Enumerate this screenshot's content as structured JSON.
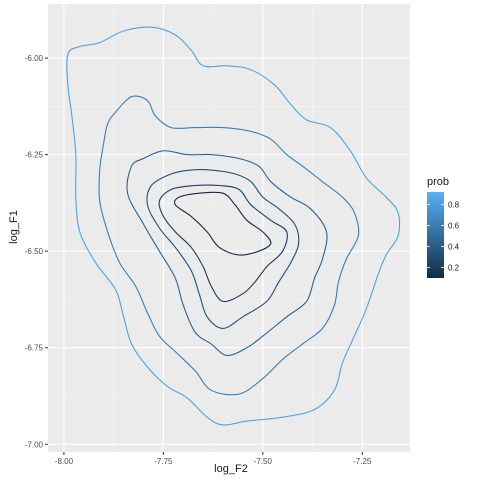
{
  "chart_data": {
    "type": "contour",
    "xlabel": "log_F2",
    "ylabel": "log_F1",
    "xlim": [
      -8.04,
      -7.13
    ],
    "ylim": [
      -7.02,
      -5.86
    ],
    "x_ticks": [
      -8.0,
      -7.75,
      -7.5,
      -7.25
    ],
    "x_tick_labels": [
      "-8.00",
      "-7.75",
      "-7.50",
      "-7.25"
    ],
    "y_ticks": [
      -6.0,
      -6.25,
      -6.5,
      -6.75,
      -7.0
    ],
    "y_tick_labels": [
      "-6.00",
      "-6.25",
      "-6.50",
      "-6.75",
      "-7.00"
    ],
    "grid": true,
    "legend": {
      "title": "prob",
      "placement": "right",
      "type": "colorbar",
      "breaks": [
        0.2,
        0.4,
        0.6,
        0.8
      ],
      "break_labels": [
        "0.2",
        "0.4",
        "0.6",
        "0.8"
      ],
      "range": [
        0.1,
        0.92
      ],
      "color_low": "#132B43",
      "color_high": "#56B1F7"
    },
    "series": [
      {
        "level": 0.9,
        "color": "#4EA3E4",
        "points": [
          [
            -7.91,
            -5.96
          ],
          [
            -7.85,
            -5.93
          ],
          [
            -7.78,
            -5.92
          ],
          [
            -7.72,
            -5.94
          ],
          [
            -7.68,
            -5.98
          ],
          [
            -7.65,
            -6.02
          ],
          [
            -7.59,
            -6.02
          ],
          [
            -7.53,
            -6.03
          ],
          [
            -7.47,
            -6.07
          ],
          [
            -7.43,
            -6.12
          ],
          [
            -7.39,
            -6.16
          ],
          [
            -7.33,
            -6.18
          ],
          [
            -7.28,
            -6.24
          ],
          [
            -7.24,
            -6.31
          ],
          [
            -7.19,
            -6.36
          ],
          [
            -7.16,
            -6.4
          ],
          [
            -7.16,
            -6.46
          ],
          [
            -7.19,
            -6.51
          ],
          [
            -7.21,
            -6.56
          ],
          [
            -7.24,
            -6.65
          ],
          [
            -7.27,
            -6.72
          ],
          [
            -7.3,
            -6.79
          ],
          [
            -7.32,
            -6.86
          ],
          [
            -7.37,
            -6.91
          ],
          [
            -7.45,
            -6.93
          ],
          [
            -7.54,
            -6.94
          ],
          [
            -7.6,
            -6.95
          ],
          [
            -7.64,
            -6.93
          ],
          [
            -7.69,
            -6.88
          ],
          [
            -7.74,
            -6.85
          ],
          [
            -7.79,
            -6.8
          ],
          [
            -7.83,
            -6.74
          ],
          [
            -7.85,
            -6.67
          ],
          [
            -7.87,
            -6.6
          ],
          [
            -7.92,
            -6.53
          ],
          [
            -7.96,
            -6.45
          ],
          [
            -7.97,
            -6.36
          ],
          [
            -7.97,
            -6.25
          ],
          [
            -7.98,
            -6.15
          ],
          [
            -7.99,
            -6.07
          ],
          [
            -7.99,
            -5.99
          ],
          [
            -7.96,
            -5.97
          ],
          [
            -7.91,
            -5.96
          ]
        ]
      },
      {
        "level": 0.75,
        "color": "#3A7EB6",
        "points": [
          [
            -7.87,
            -6.14
          ],
          [
            -7.83,
            -6.1
          ],
          [
            -7.79,
            -6.11
          ],
          [
            -7.77,
            -6.15
          ],
          [
            -7.73,
            -6.18
          ],
          [
            -7.67,
            -6.18
          ],
          [
            -7.6,
            -6.18
          ],
          [
            -7.53,
            -6.19
          ],
          [
            -7.48,
            -6.21
          ],
          [
            -7.44,
            -6.25
          ],
          [
            -7.4,
            -6.28
          ],
          [
            -7.35,
            -6.32
          ],
          [
            -7.3,
            -6.36
          ],
          [
            -7.27,
            -6.4
          ],
          [
            -7.26,
            -6.46
          ],
          [
            -7.29,
            -6.52
          ],
          [
            -7.31,
            -6.58
          ],
          [
            -7.32,
            -6.64
          ],
          [
            -7.35,
            -6.7
          ],
          [
            -7.4,
            -6.74
          ],
          [
            -7.45,
            -6.78
          ],
          [
            -7.5,
            -6.83
          ],
          [
            -7.56,
            -6.87
          ],
          [
            -7.63,
            -6.86
          ],
          [
            -7.67,
            -6.81
          ],
          [
            -7.72,
            -6.76
          ],
          [
            -7.76,
            -6.72
          ],
          [
            -7.79,
            -6.66
          ],
          [
            -7.82,
            -6.59
          ],
          [
            -7.86,
            -6.53
          ],
          [
            -7.89,
            -6.45
          ],
          [
            -7.91,
            -6.37
          ],
          [
            -7.91,
            -6.29
          ],
          [
            -7.9,
            -6.22
          ],
          [
            -7.89,
            -6.17
          ],
          [
            -7.87,
            -6.14
          ]
        ]
      },
      {
        "level": 0.55,
        "color": "#2C6291",
        "points": [
          [
            -7.8,
            -6.26
          ],
          [
            -7.75,
            -6.24
          ],
          [
            -7.69,
            -6.25
          ],
          [
            -7.63,
            -6.25
          ],
          [
            -7.56,
            -6.26
          ],
          [
            -7.51,
            -6.28
          ],
          [
            -7.48,
            -6.32
          ],
          [
            -7.43,
            -6.36
          ],
          [
            -7.38,
            -6.39
          ],
          [
            -7.34,
            -6.45
          ],
          [
            -7.35,
            -6.52
          ],
          [
            -7.37,
            -6.57
          ],
          [
            -7.39,
            -6.63
          ],
          [
            -7.44,
            -6.67
          ],
          [
            -7.5,
            -6.72
          ],
          [
            -7.54,
            -6.75
          ],
          [
            -7.59,
            -6.77
          ],
          [
            -7.63,
            -6.74
          ],
          [
            -7.67,
            -6.71
          ],
          [
            -7.7,
            -6.64
          ],
          [
            -7.72,
            -6.57
          ],
          [
            -7.76,
            -6.5
          ],
          [
            -7.8,
            -6.43
          ],
          [
            -7.84,
            -6.35
          ],
          [
            -7.83,
            -6.28
          ],
          [
            -7.8,
            -6.26
          ]
        ]
      },
      {
        "level": 0.4,
        "color": "#234E76",
        "points": [
          [
            -7.73,
            -6.3
          ],
          [
            -7.68,
            -6.29
          ],
          [
            -7.63,
            -6.29
          ],
          [
            -7.57,
            -6.3
          ],
          [
            -7.53,
            -6.32
          ],
          [
            -7.5,
            -6.36
          ],
          [
            -7.46,
            -6.39
          ],
          [
            -7.42,
            -6.43
          ],
          [
            -7.41,
            -6.48
          ],
          [
            -7.43,
            -6.53
          ],
          [
            -7.46,
            -6.58
          ],
          [
            -7.49,
            -6.63
          ],
          [
            -7.55,
            -6.67
          ],
          [
            -7.6,
            -6.7
          ],
          [
            -7.64,
            -6.67
          ],
          [
            -7.66,
            -6.61
          ],
          [
            -7.68,
            -6.55
          ],
          [
            -7.72,
            -6.49
          ],
          [
            -7.76,
            -6.44
          ],
          [
            -7.79,
            -6.38
          ],
          [
            -7.78,
            -6.33
          ],
          [
            -7.73,
            -6.3
          ]
        ]
      },
      {
        "level": 0.25,
        "color": "#1B3C5C",
        "points": [
          [
            -7.73,
            -6.34
          ],
          [
            -7.67,
            -6.33
          ],
          [
            -7.61,
            -6.33
          ],
          [
            -7.56,
            -6.34
          ],
          [
            -7.53,
            -6.38
          ],
          [
            -7.48,
            -6.42
          ],
          [
            -7.44,
            -6.45
          ],
          [
            -7.45,
            -6.5
          ],
          [
            -7.49,
            -6.54
          ],
          [
            -7.52,
            -6.58
          ],
          [
            -7.55,
            -6.61
          ],
          [
            -7.6,
            -6.63
          ],
          [
            -7.63,
            -6.59
          ],
          [
            -7.65,
            -6.54
          ],
          [
            -7.68,
            -6.49
          ],
          [
            -7.72,
            -6.45
          ],
          [
            -7.75,
            -6.41
          ],
          [
            -7.76,
            -6.37
          ],
          [
            -7.73,
            -6.34
          ]
        ]
      },
      {
        "level": 0.12,
        "color": "#132B43",
        "points": [
          [
            -7.71,
            -6.36
          ],
          [
            -7.66,
            -6.35
          ],
          [
            -7.6,
            -6.35
          ],
          [
            -7.57,
            -6.38
          ],
          [
            -7.54,
            -6.42
          ],
          [
            -7.5,
            -6.45
          ],
          [
            -7.48,
            -6.48
          ],
          [
            -7.51,
            -6.5
          ],
          [
            -7.56,
            -6.51
          ],
          [
            -7.61,
            -6.49
          ],
          [
            -7.64,
            -6.45
          ],
          [
            -7.68,
            -6.41
          ],
          [
            -7.72,
            -6.38
          ],
          [
            -7.71,
            -6.36
          ]
        ]
      }
    ]
  }
}
